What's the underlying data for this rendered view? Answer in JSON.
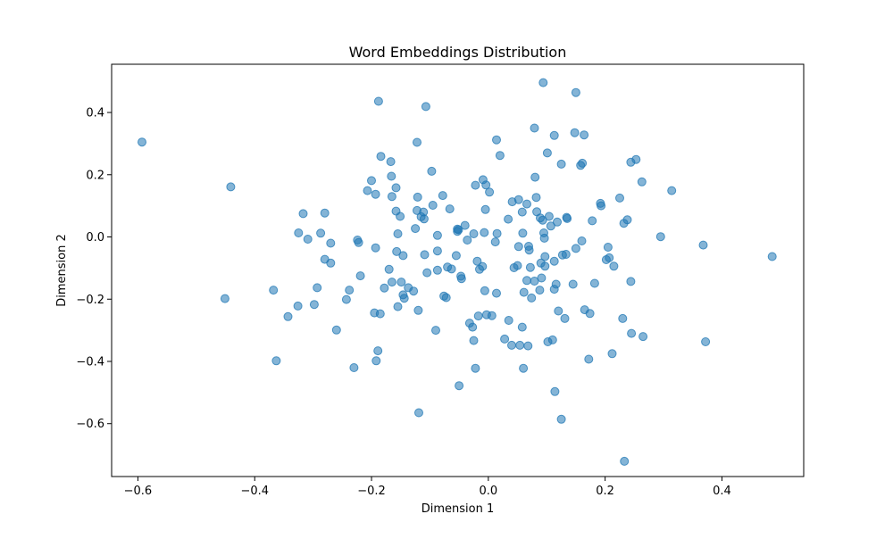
{
  "chart_data": {
    "type": "scatter",
    "title": "Word Embeddings Distribution",
    "xlabel": "Dimension 1",
    "ylabel": "Dimension 2",
    "xlim": [
      -0.645,
      0.54
    ],
    "ylim": [
      -0.77,
      0.555
    ],
    "xticks": [
      -0.6,
      -0.4,
      -0.2,
      0.0,
      0.2,
      0.4
    ],
    "xtick_labels": [
      "−0.6",
      "−0.4",
      "−0.2",
      "0.0",
      "0.2",
      "0.4"
    ],
    "yticks": [
      -0.6,
      -0.4,
      -0.2,
      0.0,
      0.2,
      0.4
    ],
    "ytick_labels": [
      "−0.6",
      "−0.4",
      "−0.2",
      "0.0",
      "0.2",
      "0.4"
    ],
    "grid": false,
    "legend": "none",
    "marker_color": "#1f77b4",
    "marker_alpha": 0.55,
    "points": [
      [
        -0.593,
        0.305
      ],
      [
        -0.441,
        0.161
      ],
      [
        -0.451,
        -0.198
      ],
      [
        -0.363,
        -0.398
      ],
      [
        -0.368,
        -0.171
      ],
      [
        -0.343,
        -0.256
      ],
      [
        -0.325,
        0.013
      ],
      [
        -0.326,
        -0.222
      ],
      [
        -0.317,
        0.075
      ],
      [
        -0.309,
        -0.007
      ],
      [
        -0.298,
        -0.217
      ],
      [
        -0.293,
        -0.163
      ],
      [
        -0.287,
        0.012
      ],
      [
        -0.28,
        0.077
      ],
      [
        -0.28,
        -0.072
      ],
      [
        -0.27,
        -0.084
      ],
      [
        -0.27,
        -0.02
      ],
      [
        -0.26,
        -0.299
      ],
      [
        -0.243,
        -0.201
      ],
      [
        -0.238,
        -0.171
      ],
      [
        -0.23,
        -0.42
      ],
      [
        -0.224,
        -0.01
      ],
      [
        -0.222,
        -0.018
      ],
      [
        -0.219,
        -0.125
      ],
      [
        -0.207,
        0.149
      ],
      [
        -0.2,
        0.181
      ],
      [
        -0.195,
        -0.244
      ],
      [
        -0.193,
        0.137
      ],
      [
        -0.193,
        -0.035
      ],
      [
        -0.192,
        -0.398
      ],
      [
        -0.189,
        -0.366
      ],
      [
        -0.188,
        0.436
      ],
      [
        -0.185,
        -0.247
      ],
      [
        -0.184,
        0.259
      ],
      [
        -0.178,
        -0.164
      ],
      [
        -0.17,
        -0.104
      ],
      [
        -0.167,
        0.242
      ],
      [
        -0.166,
        0.195
      ],
      [
        -0.165,
        -0.145
      ],
      [
        -0.165,
        0.13
      ],
      [
        -0.158,
        0.158
      ],
      [
        -0.158,
        0.083
      ],
      [
        -0.157,
        -0.047
      ],
      [
        -0.155,
        -0.224
      ],
      [
        -0.155,
        0.01
      ],
      [
        -0.151,
        0.066
      ],
      [
        -0.149,
        -0.145
      ],
      [
        -0.146,
        -0.06
      ],
      [
        -0.146,
        -0.186
      ],
      [
        -0.144,
        -0.197
      ],
      [
        -0.137,
        -0.163
      ],
      [
        -0.128,
        -0.174
      ],
      [
        -0.125,
        0.027
      ],
      [
        -0.122,
        0.304
      ],
      [
        -0.121,
        0.128
      ],
      [
        -0.122,
        0.085
      ],
      [
        -0.12,
        -0.236
      ],
      [
        -0.119,
        -0.565
      ],
      [
        -0.115,
        0.065
      ],
      [
        -0.111,
        0.08
      ],
      [
        -0.11,
        0.058
      ],
      [
        -0.109,
        -0.057
      ],
      [
        -0.107,
        0.419
      ],
      [
        -0.105,
        -0.115
      ],
      [
        -0.097,
        0.211
      ],
      [
        -0.095,
        0.102
      ],
      [
        -0.09,
        -0.3
      ],
      [
        -0.087,
        -0.045
      ],
      [
        -0.087,
        -0.107
      ],
      [
        -0.087,
        0.005
      ],
      [
        -0.078,
        0.133
      ],
      [
        -0.076,
        -0.19
      ],
      [
        -0.072,
        -0.195
      ],
      [
        -0.07,
        -0.097
      ],
      [
        -0.066,
        0.09
      ],
      [
        -0.063,
        -0.103
      ],
      [
        -0.055,
        -0.06
      ],
      [
        -0.053,
        0.025
      ],
      [
        -0.053,
        0.018
      ],
      [
        -0.051,
        0.023
      ],
      [
        -0.05,
        -0.478
      ],
      [
        -0.047,
        -0.126
      ],
      [
        -0.046,
        -0.134
      ],
      [
        -0.04,
        0.037
      ],
      [
        -0.036,
        -0.01
      ],
      [
        -0.032,
        -0.277
      ],
      [
        -0.027,
        -0.29
      ],
      [
        -0.025,
        0.01
      ],
      [
        -0.025,
        -0.333
      ],
      [
        -0.022,
        -0.422
      ],
      [
        -0.022,
        0.166
      ],
      [
        -0.019,
        -0.078
      ],
      [
        -0.017,
        -0.254
      ],
      [
        -0.015,
        -0.104
      ],
      [
        -0.01,
        -0.095
      ],
      [
        -0.009,
        0.184
      ],
      [
        -0.007,
        0.014
      ],
      [
        -0.006,
        -0.173
      ],
      [
        -0.005,
        0.088
      ],
      [
        -0.004,
        0.167
      ],
      [
        -0.003,
        -0.25
      ],
      [
        0.002,
        0.144
      ],
      [
        0.006,
        -0.253
      ],
      [
        0.012,
        -0.016
      ],
      [
        0.014,
        0.312
      ],
      [
        0.014,
        -0.181
      ],
      [
        0.015,
        0.011
      ],
      [
        0.02,
        0.262
      ],
      [
        0.028,
        -0.328
      ],
      [
        0.034,
        0.057
      ],
      [
        0.035,
        -0.268
      ],
      [
        0.04,
        -0.348
      ],
      [
        0.041,
        0.113
      ],
      [
        0.044,
        -0.099
      ],
      [
        0.05,
        -0.092
      ],
      [
        0.052,
        0.12
      ],
      [
        0.052,
        -0.031
      ],
      [
        0.054,
        -0.348
      ],
      [
        0.058,
        0.08
      ],
      [
        0.058,
        -0.29
      ],
      [
        0.059,
        0.012
      ],
      [
        0.06,
        -0.422
      ],
      [
        0.061,
        -0.178
      ],
      [
        0.066,
        -0.14
      ],
      [
        0.066,
        0.106
      ],
      [
        0.068,
        -0.35
      ],
      [
        0.069,
        -0.03
      ],
      [
        0.07,
        -0.042
      ],
      [
        0.072,
        -0.098
      ],
      [
        0.074,
        -0.196
      ],
      [
        0.079,
        -0.142
      ],
      [
        0.079,
        0.35
      ],
      [
        0.08,
        0.192
      ],
      [
        0.082,
        0.127
      ],
      [
        0.083,
        0.081
      ],
      [
        0.088,
        -0.171
      ],
      [
        0.089,
        0.061
      ],
      [
        0.09,
        -0.084
      ],
      [
        0.091,
        -0.132
      ],
      [
        0.093,
        0.054
      ],
      [
        0.094,
        0.496
      ],
      [
        0.095,
        0.013
      ],
      [
        0.096,
        -0.004
      ],
      [
        0.097,
        -0.063
      ],
      [
        0.097,
        -0.094
      ],
      [
        0.101,
        0.27
      ],
      [
        0.102,
        -0.337
      ],
      [
        0.104,
        0.066
      ],
      [
        0.107,
        0.035
      ],
      [
        0.11,
        -0.331
      ],
      [
        0.113,
        -0.168
      ],
      [
        0.113,
        -0.078
      ],
      [
        0.113,
        0.326
      ],
      [
        0.114,
        -0.497
      ],
      [
        0.116,
        -0.152
      ],
      [
        0.118,
        0.048
      ],
      [
        0.12,
        -0.238
      ],
      [
        0.125,
        0.234
      ],
      [
        0.125,
        -0.586
      ],
      [
        0.127,
        -0.058
      ],
      [
        0.131,
        -0.262
      ],
      [
        0.133,
        -0.056
      ],
      [
        0.134,
        0.063
      ],
      [
        0.135,
        0.059
      ],
      [
        0.145,
        -0.152
      ],
      [
        0.148,
        0.335
      ],
      [
        0.15,
        0.464
      ],
      [
        0.15,
        -0.037
      ],
      [
        0.158,
        0.23
      ],
      [
        0.16,
        -0.013
      ],
      [
        0.161,
        0.237
      ],
      [
        0.164,
        0.328
      ],
      [
        0.165,
        -0.234
      ],
      [
        0.172,
        -0.393
      ],
      [
        0.174,
        -0.246
      ],
      [
        0.178,
        0.052
      ],
      [
        0.182,
        -0.149
      ],
      [
        0.192,
        0.108
      ],
      [
        0.193,
        0.1
      ],
      [
        0.202,
        -0.073
      ],
      [
        0.205,
        -0.033
      ],
      [
        0.207,
        -0.067
      ],
      [
        0.212,
        -0.375
      ],
      [
        0.215,
        -0.094
      ],
      [
        0.225,
        0.125
      ],
      [
        0.23,
        -0.262
      ],
      [
        0.232,
        0.044
      ],
      [
        0.233,
        -0.721
      ],
      [
        0.238,
        0.055
      ],
      [
        0.244,
        -0.143
      ],
      [
        0.244,
        0.24
      ],
      [
        0.245,
        -0.31
      ],
      [
        0.253,
        0.249
      ],
      [
        0.263,
        0.177
      ],
      [
        0.265,
        -0.32
      ],
      [
        0.295,
        0.001
      ],
      [
        0.314,
        0.149
      ],
      [
        0.368,
        -0.026
      ],
      [
        0.372,
        -0.337
      ],
      [
        0.486,
        -0.063
      ]
    ]
  }
}
